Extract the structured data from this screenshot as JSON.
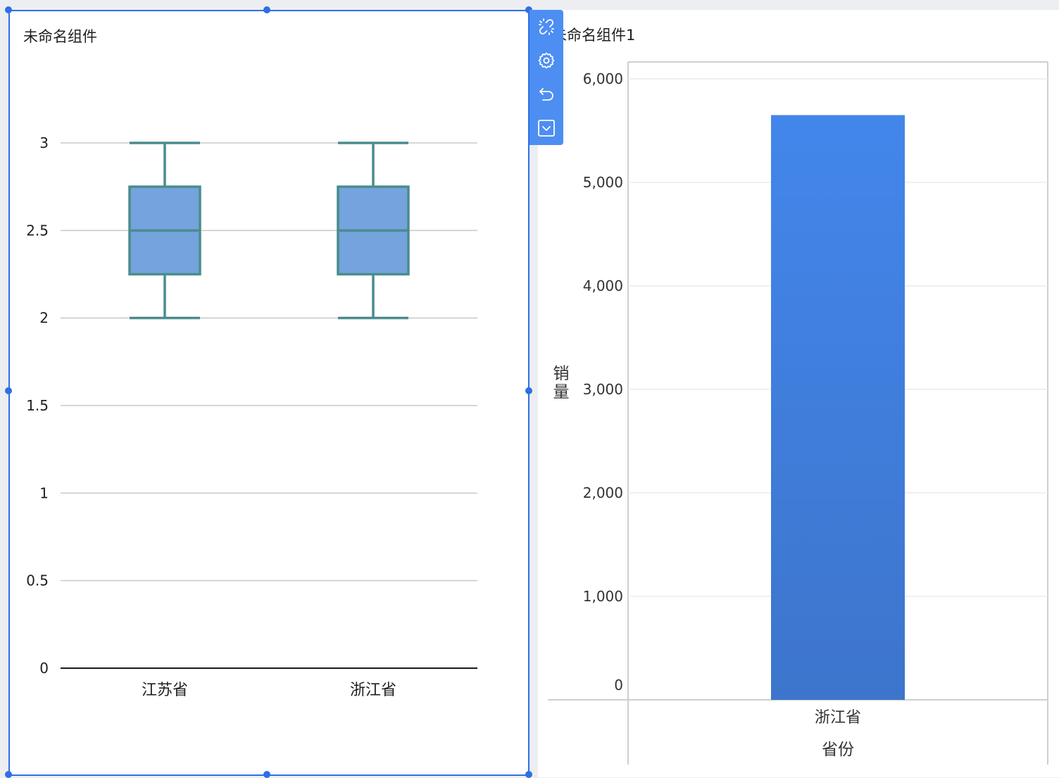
{
  "widgets": [
    {
      "title": "未命名组件"
    },
    {
      "title": "未命名组件1"
    }
  ],
  "toolbar": {
    "icons": [
      "unlink-icon",
      "gear-icon",
      "undo-icon",
      "dropdown-icon"
    ]
  },
  "colors": {
    "selection": "#2f6fe4",
    "toolbar": "#4d8ef3",
    "box_fill": "#74a3de",
    "box_stroke": "#4a8c8c",
    "bar_top": "#4386eb",
    "bar_bottom": "#3d75cc"
  },
  "chart_data": [
    {
      "type": "box",
      "title": "",
      "categories": [
        "江苏省",
        "浙江省"
      ],
      "boxes": [
        {
          "min": 2,
          "q1": 2.25,
          "median": 2.5,
          "q3": 2.75,
          "max": 3
        },
        {
          "min": 2,
          "q1": 2.25,
          "median": 2.5,
          "q3": 2.75,
          "max": 3
        }
      ],
      "yticks": [
        "0",
        "0.5",
        "1",
        "1.5",
        "2",
        "2.5",
        "3"
      ],
      "ylim": [
        0,
        3
      ],
      "grid": true
    },
    {
      "type": "bar",
      "title": "",
      "categories": [
        "浙江省"
      ],
      "values": [
        5650
      ],
      "xlabel": "省份",
      "ylabel": "销量",
      "yticks": [
        "0",
        "1,000",
        "2,000",
        "3,000",
        "4,000",
        "5,000",
        "6,000"
      ],
      "ylim": [
        0,
        6000
      ],
      "grid": true
    }
  ]
}
